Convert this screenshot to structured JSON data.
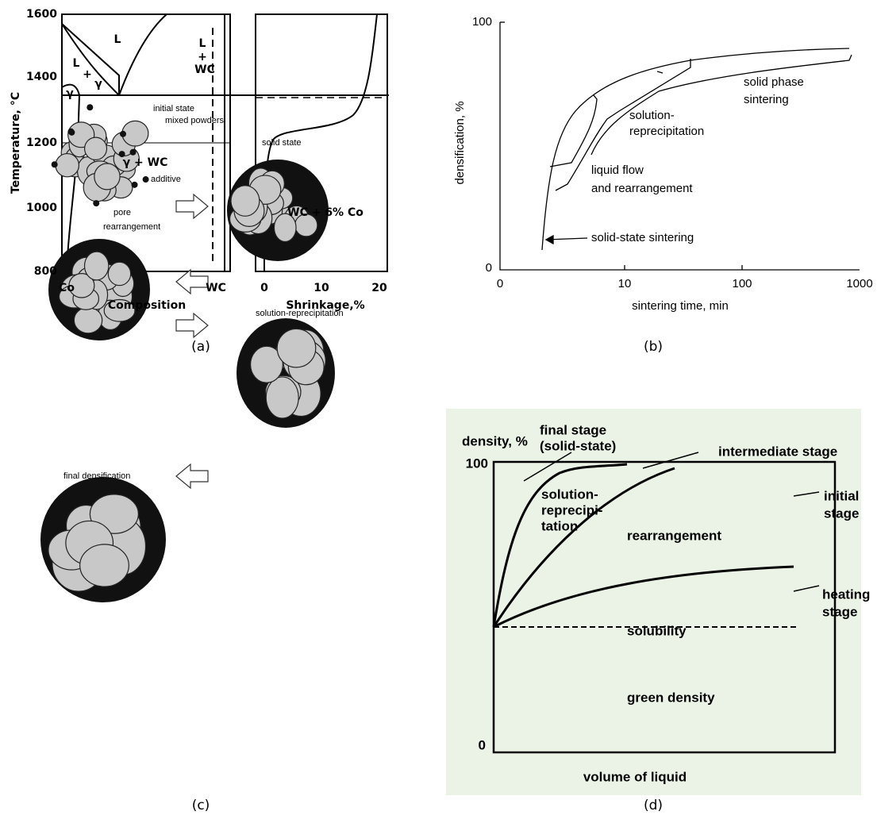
{
  "panels": [
    {
      "caption": "(a)",
      "y_axis_label": "Temperature, °C",
      "y_ticks": [
        1600,
        1400,
        1200,
        1000,
        800
      ],
      "left_x_ticks": [
        "Co",
        "WC"
      ],
      "left_x_label": "Composition",
      "right_x_ticks": [
        0,
        10,
        20
      ],
      "right_x_label": "Shrinkage,%",
      "regions": [
        "L",
        "L",
        "+",
        "WC",
        "L",
        "+",
        "γ",
        "γ",
        "γ + WC",
        "WC + 6% Co"
      ]
    },
    {
      "caption": "(b)",
      "y_axis_label": "densification, %",
      "y_ticks": [
        100,
        0
      ],
      "x_ticks": [
        0,
        10,
        100,
        1000
      ],
      "x_axis_label": "sintering time, min",
      "annotations": [
        "solid phase",
        "sintering",
        "solution-",
        "reprecipitation",
        "liquid flow",
        "and rearrangement",
        "solid-state sintering"
      ]
    },
    {
      "caption": "(c)",
      "labels": [
        "initial state",
        "mixed powders",
        "additive",
        "pore",
        "rearrangement",
        "solid state",
        "solution-reprecipitation",
        "final densification"
      ]
    },
    {
      "caption": "(d)",
      "y_axis_label": "density, %",
      "y_ticks": [
        100,
        0
      ],
      "x_axis_label": "volume of liquid",
      "annotations": [
        "final stage",
        "(solid-state)",
        "intermediate stage",
        "solution-",
        "reprecipi-",
        "tation",
        "rearrangement",
        "initial",
        "stage",
        "heating",
        "stage",
        "solubility",
        "green density"
      ]
    }
  ]
}
